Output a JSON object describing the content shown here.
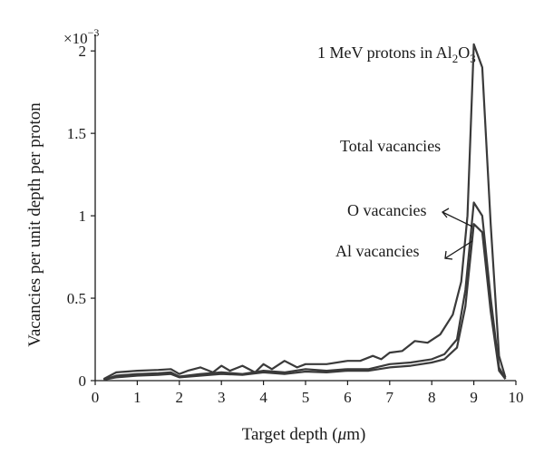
{
  "chart_data": {
    "type": "line",
    "title": "1 MeV protons in Al₂O₃",
    "title_main": "1 MeV protons in Al",
    "title_sub1": "2",
    "title_mid": "O",
    "title_sub2": "3",
    "xlabel_pre": "Target depth (",
    "xlabel_mu": "μ",
    "xlabel_post": "m)",
    "ylabel": "Vacancies per unit depth per proton",
    "y_multiplier_base": "×10",
    "y_multiplier_exp": "−3",
    "xlim": [
      0,
      10
    ],
    "ylim": [
      0,
      2.1
    ],
    "x_ticks": [
      0,
      1,
      2,
      3,
      4,
      5,
      6,
      7,
      8,
      9,
      10
    ],
    "x_tick_labels": [
      "0",
      "1",
      "2",
      "3",
      "4",
      "5",
      "6",
      "7",
      "8",
      "9",
      "10"
    ],
    "y_ticks": [
      0,
      0.5,
      1,
      1.5,
      2
    ],
    "y_tick_labels": [
      "0",
      "0.5",
      "1",
      "1.5",
      "2"
    ],
    "grid": false,
    "annotations": [
      {
        "text": "Total vacancies",
        "series": "Total vacancies"
      },
      {
        "text": "O vacancies",
        "series": "O vacancies"
      },
      {
        "text": "Al vacancies",
        "series": "Al vacancies"
      }
    ],
    "series": [
      {
        "name": "Total vacancies",
        "color": "#3a3a3a",
        "x": [
          0.2,
          0.5,
          1.0,
          1.5,
          1.8,
          2.0,
          2.2,
          2.5,
          2.8,
          3.0,
          3.2,
          3.5,
          3.8,
          4.0,
          4.2,
          4.5,
          4.8,
          5.0,
          5.5,
          6.0,
          6.3,
          6.6,
          6.8,
          7.0,
          7.3,
          7.6,
          7.9,
          8.2,
          8.5,
          8.7,
          8.85,
          9.0,
          9.2,
          9.4,
          9.6,
          9.75
        ],
        "y": [
          0.01,
          0.05,
          0.06,
          0.065,
          0.07,
          0.04,
          0.06,
          0.08,
          0.05,
          0.09,
          0.06,
          0.09,
          0.05,
          0.1,
          0.07,
          0.12,
          0.08,
          0.1,
          0.1,
          0.12,
          0.12,
          0.15,
          0.13,
          0.17,
          0.18,
          0.24,
          0.23,
          0.28,
          0.4,
          0.6,
          1.0,
          2.04,
          1.9,
          0.95,
          0.15,
          0.02
        ]
      },
      {
        "name": "O vacancies",
        "color": "#4a4a4a",
        "x": [
          0.2,
          0.5,
          1.0,
          1.5,
          1.8,
          2.0,
          2.5,
          3.0,
          3.5,
          4.0,
          4.5,
          5.0,
          5.5,
          6.0,
          6.5,
          7.0,
          7.5,
          8.0,
          8.3,
          8.6,
          8.8,
          9.0,
          9.2,
          9.4,
          9.6,
          9.75
        ],
        "y": [
          0.005,
          0.03,
          0.04,
          0.045,
          0.05,
          0.025,
          0.04,
          0.05,
          0.04,
          0.06,
          0.05,
          0.07,
          0.06,
          0.07,
          0.07,
          0.1,
          0.11,
          0.13,
          0.16,
          0.25,
          0.55,
          1.08,
          1.0,
          0.5,
          0.08,
          0.01
        ]
      },
      {
        "name": "Al vacancies",
        "color": "#5a5a5a",
        "x": [
          0.2,
          0.5,
          1.0,
          1.5,
          1.8,
          2.0,
          2.5,
          3.0,
          3.5,
          4.0,
          4.5,
          5.0,
          5.5,
          6.0,
          6.5,
          7.0,
          7.5,
          8.0,
          8.3,
          8.6,
          8.8,
          9.0,
          9.2,
          9.4,
          9.6,
          9.75
        ],
        "y": [
          0.005,
          0.02,
          0.03,
          0.035,
          0.04,
          0.02,
          0.03,
          0.04,
          0.035,
          0.05,
          0.04,
          0.055,
          0.05,
          0.06,
          0.06,
          0.08,
          0.09,
          0.11,
          0.13,
          0.2,
          0.45,
          0.95,
          0.9,
          0.42,
          0.06,
          0.01
        ]
      }
    ]
  }
}
